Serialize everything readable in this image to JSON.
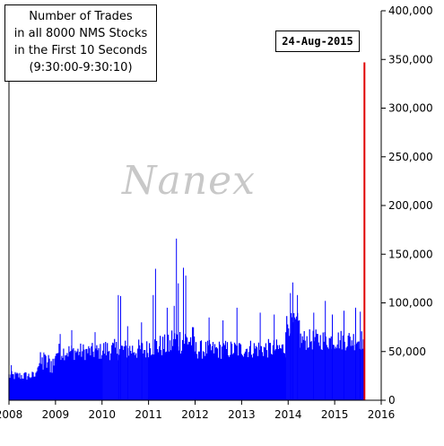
{
  "title_lines": [
    "Number of Trades",
    "in all 8000 NMS Stocks",
    "in the First 10 Seconds",
    "(9:30:00-9:30:10)"
  ],
  "watermark": "Nanex",
  "annotation": "24-Aug-2015",
  "colors": {
    "bars": "#0000ff",
    "highlight": "#e00000",
    "axis": "#000000"
  },
  "chart_data": {
    "type": "bar",
    "title": "Number of Trades in all 8000 NMS Stocks in the First 10 Seconds (9:30:00-9:30:10)",
    "xlim": [
      2008,
      2016
    ],
    "ylim": [
      0,
      400000
    ],
    "x_ticks": [
      "2008",
      "2009",
      "2010",
      "2011",
      "2012",
      "2013",
      "2014",
      "2015",
      "2016"
    ],
    "y_ticks": [
      "0",
      "50,000",
      "100,000",
      "150,000",
      "200,000",
      "250,000",
      "300,000",
      "350,000",
      "400,000"
    ],
    "y_axis_side": "right",
    "grid": false,
    "series": [
      {
        "color": "#0000ff",
        "segments": [
          {
            "from": 2008.0,
            "to": 2008.6,
            "base": 25000,
            "noise": 5000
          },
          {
            "from": 2008.6,
            "to": 2009.0,
            "base": 38000,
            "noise": 12000
          },
          {
            "from": 2009.0,
            "to": 2010.0,
            "base": 50000,
            "noise": 9000
          },
          {
            "from": 2010.0,
            "to": 2011.0,
            "base": 52000,
            "noise": 11000
          },
          {
            "from": 2011.0,
            "to": 2011.5,
            "base": 56000,
            "noise": 12000
          },
          {
            "from": 2011.5,
            "to": 2012.0,
            "base": 62000,
            "noise": 15000
          },
          {
            "from": 2012.0,
            "to": 2013.0,
            "base": 52000,
            "noise": 10000
          },
          {
            "from": 2013.0,
            "to": 2013.95,
            "base": 53000,
            "noise": 10000
          },
          {
            "from": 2013.95,
            "to": 2014.25,
            "base": 78000,
            "noise": 12000
          },
          {
            "from": 2014.25,
            "to": 2015.62,
            "base": 62000,
            "noise": 11000
          }
        ],
        "spikes": [
          {
            "x": 2008.05,
            "y": 36000
          },
          {
            "x": 2008.75,
            "y": 49000
          },
          {
            "x": 2009.1,
            "y": 68000
          },
          {
            "x": 2009.35,
            "y": 72000
          },
          {
            "x": 2009.85,
            "y": 70000
          },
          {
            "x": 2010.35,
            "y": 108000
          },
          {
            "x": 2010.4,
            "y": 107000
          },
          {
            "x": 2010.55,
            "y": 76000
          },
          {
            "x": 2010.85,
            "y": 80000
          },
          {
            "x": 2011.1,
            "y": 108000
          },
          {
            "x": 2011.15,
            "y": 135000
          },
          {
            "x": 2011.4,
            "y": 95000
          },
          {
            "x": 2011.55,
            "y": 97000
          },
          {
            "x": 2011.6,
            "y": 166000
          },
          {
            "x": 2011.64,
            "y": 120000
          },
          {
            "x": 2011.75,
            "y": 136000
          },
          {
            "x": 2011.8,
            "y": 128000
          },
          {
            "x": 2012.3,
            "y": 85000
          },
          {
            "x": 2012.6,
            "y": 82000
          },
          {
            "x": 2012.9,
            "y": 95000
          },
          {
            "x": 2013.4,
            "y": 90000
          },
          {
            "x": 2013.7,
            "y": 88000
          },
          {
            "x": 2014.05,
            "y": 110000
          },
          {
            "x": 2014.1,
            "y": 121000
          },
          {
            "x": 2014.2,
            "y": 108000
          },
          {
            "x": 2014.55,
            "y": 90000
          },
          {
            "x": 2014.8,
            "y": 102000
          },
          {
            "x": 2014.95,
            "y": 88000
          },
          {
            "x": 2015.2,
            "y": 92000
          },
          {
            "x": 2015.45,
            "y": 95000
          },
          {
            "x": 2015.55,
            "y": 91000
          }
        ]
      },
      {
        "color": "#e00000",
        "points": [
          {
            "x": 2015.64,
            "y": 347000,
            "label": "24-Aug-2015"
          }
        ]
      }
    ]
  }
}
